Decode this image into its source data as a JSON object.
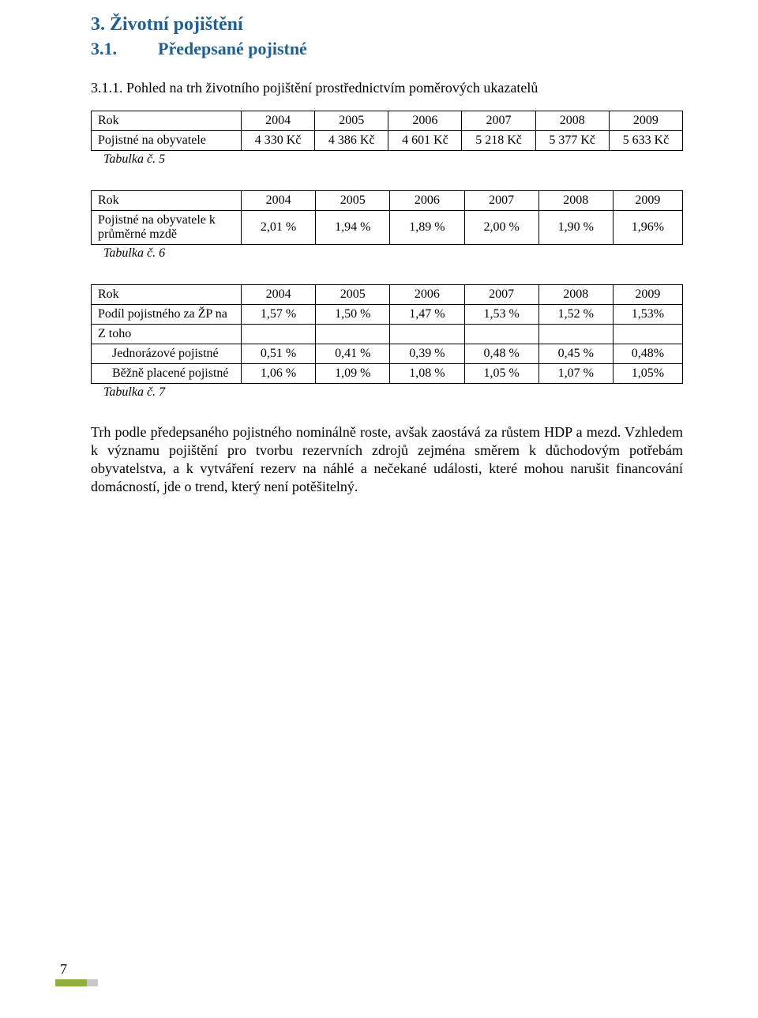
{
  "headings": {
    "section": "3. Životní pojištění",
    "subsection_num": "3.1.",
    "subsection_title": "Předepsané pojistné",
    "subsubsection": "3.1.1.  Pohled na trh životního pojištění prostřednictvím poměrových ukazatelů"
  },
  "years": [
    "2004",
    "2005",
    "2006",
    "2007",
    "2008",
    "2009"
  ],
  "table5": {
    "row_label_year": "Rok",
    "row_label": "Pojistné na obyvatele",
    "values": [
      "4 330 Kč",
      "4 386 Kč",
      "4 601 Kč",
      "5 218 Kč",
      "5 377 Kč",
      "5 633 Kč"
    ],
    "caption": "Tabulka č. 5"
  },
  "table6": {
    "row_label_year": "Rok",
    "row_label": "Pojistné na obyvatele k průměrné mzdě",
    "values": [
      "2,01 %",
      "1,94 %",
      "1,89 %",
      "2,00 %",
      "1,90 %",
      "1,96%"
    ],
    "caption": "Tabulka č. 6"
  },
  "table7": {
    "row_label_year": "Rok",
    "row1_label": "Podíl pojistného za ŽP na",
    "row1_values": [
      "1,57 %",
      "1,50 %",
      "1,47 %",
      "1,53 %",
      "1,52 %",
      "1,53%"
    ],
    "row2_label": "Z toho",
    "row3_label": "Jednorázové pojistné",
    "row3_values": [
      "0,51 %",
      "0,41 %",
      "0,39 %",
      "0,48 %",
      "0,45 %",
      "0,48%"
    ],
    "row4_label": "Běžně placené pojistné",
    "row4_values": [
      "1,06 %",
      "1,09 %",
      "1,08 %",
      "1,05 %",
      "1,07 %",
      "1,05%"
    ],
    "caption": "Tabulka č. 7"
  },
  "paragraph": "Trh podle předepsaného pojistného nominálně roste, avšak zaostává za růstem HDP a mezd. Vzhledem k významu pojištění pro tvorbu rezervních zdrojů zejména směrem k důchodovým potřebám obyvatelstva, a k vytváření rezerv na náhlé a nečekané události, které mohou narušit financování domácností, jde o trend, který není potěšitelný.",
  "page_number": "7",
  "colors": {
    "heading": "#1f6091",
    "bar_green": "#8faf3e",
    "bar_gray": "#c7c7c7"
  }
}
